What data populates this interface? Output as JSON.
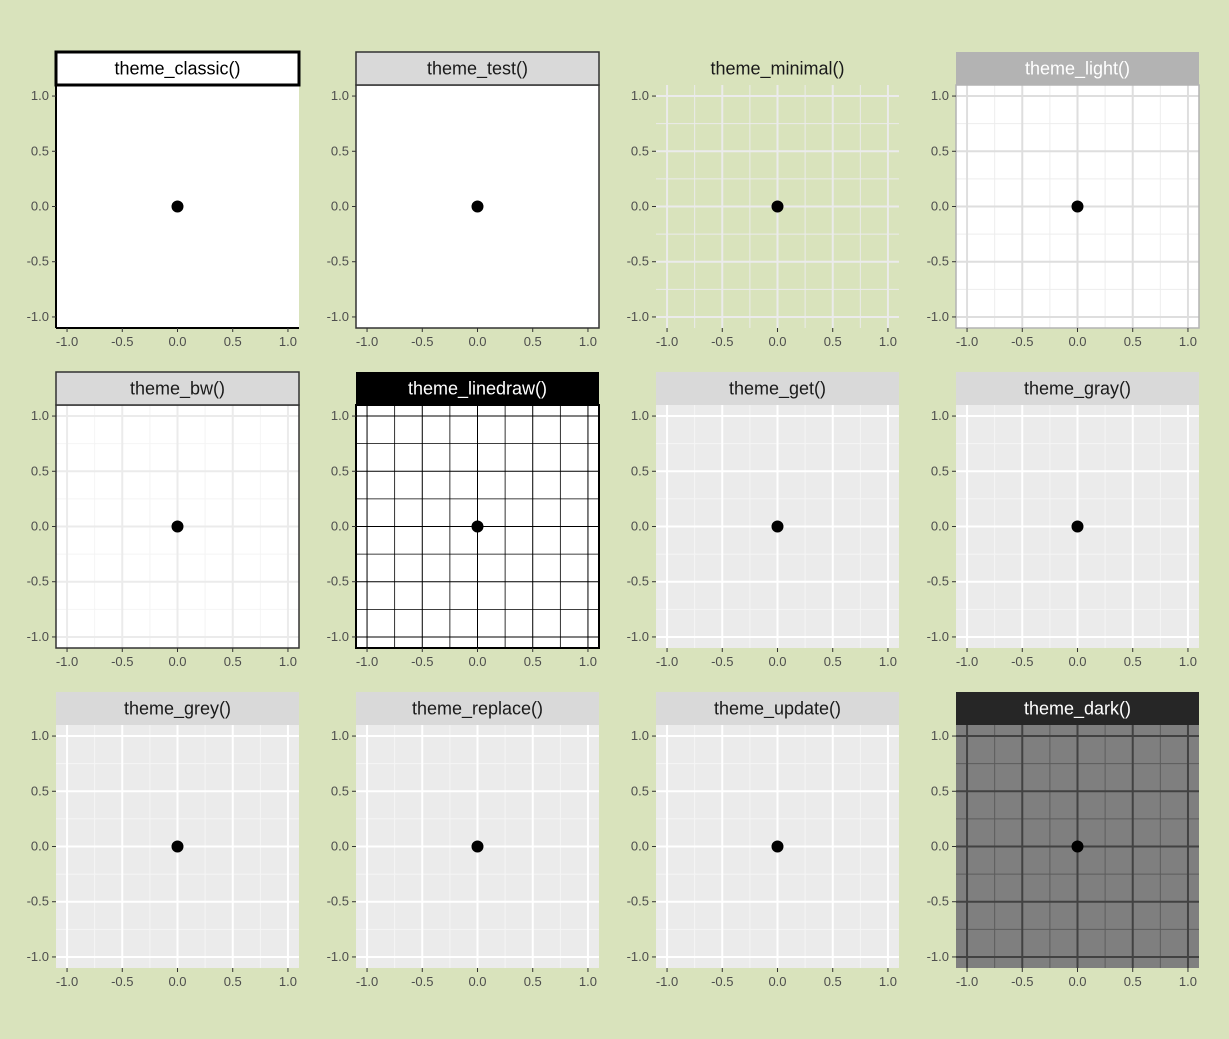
{
  "page": {
    "background": "#d9e3bc"
  },
  "chart_data": [
    {
      "type": "scatter",
      "strip": "theme_classic()",
      "theme": "classic",
      "x": [
        0
      ],
      "y": [
        0
      ],
      "xlim": [
        -1.1,
        1.1
      ],
      "ylim": [
        -1.1,
        1.1
      ],
      "xticks": [
        "-1.0",
        "-0.5",
        "0.0",
        "0.5",
        "1.0"
      ],
      "yticks": [
        "1.0",
        "0.5",
        "0.0",
        "-0.5",
        "-1.0"
      ],
      "grid": false
    },
    {
      "type": "scatter",
      "strip": "theme_test()",
      "theme": "test",
      "x": [
        0
      ],
      "y": [
        0
      ],
      "xlim": [
        -1.1,
        1.1
      ],
      "ylim": [
        -1.1,
        1.1
      ],
      "xticks": [
        "-1.0",
        "-0.5",
        "0.0",
        "0.5",
        "1.0"
      ],
      "yticks": [
        "1.0",
        "0.5",
        "0.0",
        "-0.5",
        "-1.0"
      ],
      "grid": false
    },
    {
      "type": "scatter",
      "strip": "theme_minimal()",
      "theme": "minimal",
      "x": [
        0
      ],
      "y": [
        0
      ],
      "xlim": [
        -1.1,
        1.1
      ],
      "ylim": [
        -1.1,
        1.1
      ],
      "xticks": [
        "-1.0",
        "-0.5",
        "0.0",
        "0.5",
        "1.0"
      ],
      "yticks": [
        "1.0",
        "0.5",
        "0.0",
        "-0.5",
        "-1.0"
      ],
      "grid": true
    },
    {
      "type": "scatter",
      "strip": "theme_light()",
      "theme": "light",
      "x": [
        0
      ],
      "y": [
        0
      ],
      "xlim": [
        -1.1,
        1.1
      ],
      "ylim": [
        -1.1,
        1.1
      ],
      "xticks": [
        "-1.0",
        "-0.5",
        "0.0",
        "0.5",
        "1.0"
      ],
      "yticks": [
        "1.0",
        "0.5",
        "0.0",
        "-0.5",
        "-1.0"
      ],
      "grid": true
    },
    {
      "type": "scatter",
      "strip": "theme_bw()",
      "theme": "bw",
      "x": [
        0
      ],
      "y": [
        0
      ],
      "xlim": [
        -1.1,
        1.1
      ],
      "ylim": [
        -1.1,
        1.1
      ],
      "xticks": [
        "-1.0",
        "-0.5",
        "0.0",
        "0.5",
        "1.0"
      ],
      "yticks": [
        "1.0",
        "0.5",
        "0.0",
        "-0.5",
        "-1.0"
      ],
      "grid": true
    },
    {
      "type": "scatter",
      "strip": "theme_linedraw()",
      "theme": "linedraw",
      "x": [
        0
      ],
      "y": [
        0
      ],
      "xlim": [
        -1.1,
        1.1
      ],
      "ylim": [
        -1.1,
        1.1
      ],
      "xticks": [
        "-1.0",
        "-0.5",
        "0.0",
        "0.5",
        "1.0"
      ],
      "yticks": [
        "1.0",
        "0.5",
        "0.0",
        "-0.5",
        "-1.0"
      ],
      "grid": true
    },
    {
      "type": "scatter",
      "strip": "theme_get()",
      "theme": "gray",
      "x": [
        0
      ],
      "y": [
        0
      ],
      "xlim": [
        -1.1,
        1.1
      ],
      "ylim": [
        -1.1,
        1.1
      ],
      "xticks": [
        "-1.0",
        "-0.5",
        "0.0",
        "0.5",
        "1.0"
      ],
      "yticks": [
        "1.0",
        "0.5",
        "0.0",
        "-0.5",
        "-1.0"
      ],
      "grid": true
    },
    {
      "type": "scatter",
      "strip": "theme_gray()",
      "theme": "gray",
      "x": [
        0
      ],
      "y": [
        0
      ],
      "xlim": [
        -1.1,
        1.1
      ],
      "ylim": [
        -1.1,
        1.1
      ],
      "xticks": [
        "-1.0",
        "-0.5",
        "0.0",
        "0.5",
        "1.0"
      ],
      "yticks": [
        "1.0",
        "0.5",
        "0.0",
        "-0.5",
        "-1.0"
      ],
      "grid": true
    },
    {
      "type": "scatter",
      "strip": "theme_grey()",
      "theme": "gray",
      "x": [
        0
      ],
      "y": [
        0
      ],
      "xlim": [
        -1.1,
        1.1
      ],
      "ylim": [
        -1.1,
        1.1
      ],
      "xticks": [
        "-1.0",
        "-0.5",
        "0.0",
        "0.5",
        "1.0"
      ],
      "yticks": [
        "1.0",
        "0.5",
        "0.0",
        "-0.5",
        "-1.0"
      ],
      "grid": true
    },
    {
      "type": "scatter",
      "strip": "theme_replace()",
      "theme": "gray",
      "x": [
        0
      ],
      "y": [
        0
      ],
      "xlim": [
        -1.1,
        1.1
      ],
      "ylim": [
        -1.1,
        1.1
      ],
      "xticks": [
        "-1.0",
        "-0.5",
        "0.0",
        "0.5",
        "1.0"
      ],
      "yticks": [
        "1.0",
        "0.5",
        "0.0",
        "-0.5",
        "-1.0"
      ],
      "grid": true
    },
    {
      "type": "scatter",
      "strip": "theme_update()",
      "theme": "gray",
      "x": [
        0
      ],
      "y": [
        0
      ],
      "xlim": [
        -1.1,
        1.1
      ],
      "ylim": [
        -1.1,
        1.1
      ],
      "xticks": [
        "-1.0",
        "-0.5",
        "0.0",
        "0.5",
        "1.0"
      ],
      "yticks": [
        "1.0",
        "0.5",
        "0.0",
        "-0.5",
        "-1.0"
      ],
      "grid": true
    },
    {
      "type": "scatter",
      "strip": "theme_dark()",
      "theme": "dark",
      "x": [
        0
      ],
      "y": [
        0
      ],
      "xlim": [
        -1.1,
        1.1
      ],
      "ylim": [
        -1.1,
        1.1
      ],
      "xticks": [
        "-1.0",
        "-0.5",
        "0.0",
        "0.5",
        "1.0"
      ],
      "yticks": [
        "1.0",
        "0.5",
        "0.0",
        "-0.5",
        "-1.0"
      ],
      "grid": true
    }
  ],
  "themes": {
    "classic": {
      "strip_bg": "#ffffff",
      "strip_fg": "#000000",
      "strip_border": "#000000",
      "panel_bg": "#ffffff",
      "grid_major": null,
      "grid_minor": null,
      "panel_border": null,
      "axis_lines": "#000000"
    },
    "test": {
      "strip_bg": "#d9d9d9",
      "strip_fg": "#1a1a1a",
      "strip_border": "#333333",
      "panel_bg": "#ffffff",
      "grid_major": null,
      "grid_minor": null,
      "panel_border": "#333333",
      "axis_lines": null
    },
    "minimal": {
      "strip_bg": null,
      "strip_fg": "#1a1a1a",
      "strip_border": null,
      "panel_bg": null,
      "grid_major": "#ebebeb",
      "grid_minor": "#ebebeb",
      "panel_border": null,
      "axis_lines": null
    },
    "light": {
      "strip_bg": "#b3b3b3",
      "strip_fg": "#ffffff",
      "strip_border": null,
      "panel_bg": "#ffffff",
      "grid_major": "#dedede",
      "grid_minor": "#ededed",
      "panel_border": "#b3b3b3",
      "axis_lines": null
    },
    "bw": {
      "strip_bg": "#d9d9d9",
      "strip_fg": "#1a1a1a",
      "strip_border": "#333333",
      "panel_bg": "#ffffff",
      "grid_major": "#ebebeb",
      "grid_minor": "#f4f4f4",
      "panel_border": "#333333",
      "axis_lines": null
    },
    "linedraw": {
      "strip_bg": "#000000",
      "strip_fg": "#ffffff",
      "strip_border": null,
      "panel_bg": "#ffffff",
      "grid_major": "#000000",
      "grid_minor": "#000000",
      "panel_border": "#000000",
      "axis_lines": null
    },
    "gray": {
      "strip_bg": "#d9d9d9",
      "strip_fg": "#1a1a1a",
      "strip_border": null,
      "panel_bg": "#ebebeb",
      "grid_major": "#ffffff",
      "grid_minor": "#f5f5f5",
      "panel_border": null,
      "axis_lines": null
    },
    "dark": {
      "strip_bg": "#262626",
      "strip_fg": "#ffffff",
      "strip_border": null,
      "panel_bg": "#7f7f7f",
      "grid_major": "#424242",
      "grid_minor": "#5c5c5c",
      "panel_border": null,
      "axis_lines": null
    }
  },
  "colors": {
    "point": "#000000",
    "tick_label": "#4d4d4d",
    "tick_mark": "#333333"
  }
}
